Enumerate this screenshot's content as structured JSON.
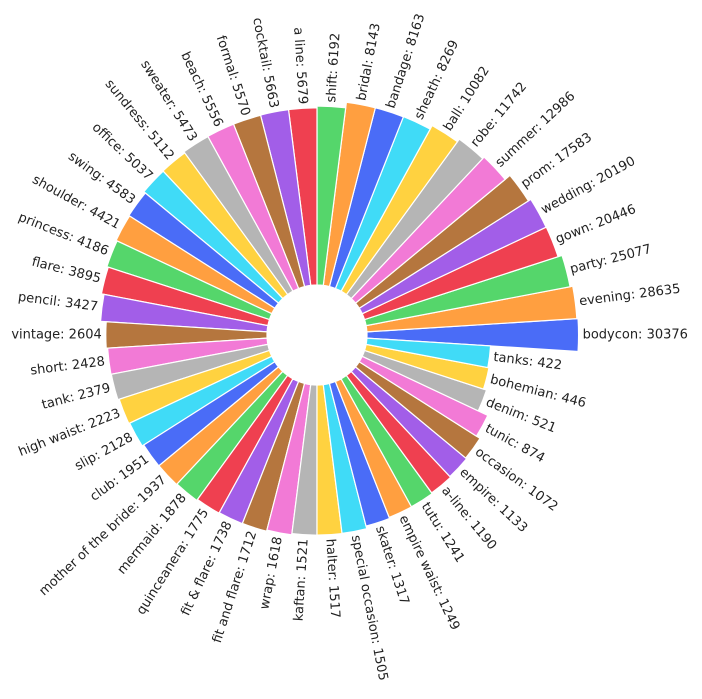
{
  "chart_data": {
    "type": "radial-bar",
    "log_scale": true,
    "ylim": [
      1,
      100000
    ],
    "colors": [
      "#4a6cf7",
      "#ff9f40",
      "#55d66b",
      "#ef4050",
      "#a25ee8",
      "#b5763e",
      "#f27ad6",
      "#b5b5b5",
      "#ffd240",
      "#40dbf7"
    ],
    "values": [
      30376,
      28635,
      25077,
      20446,
      20190,
      17583,
      12986,
      11742,
      10082,
      8269,
      8163,
      8143,
      6192,
      5679,
      5663,
      5570,
      5556,
      5473,
      5112,
      5037,
      4583,
      4421,
      4186,
      3895,
      3427,
      2604,
      2428,
      2379,
      2223,
      2128,
      1951,
      1937,
      1878,
      1775,
      1738,
      1712,
      1618,
      1521,
      1517,
      1505,
      1317,
      1249,
      1241,
      1190,
      1133,
      1072,
      874,
      521,
      446,
      422
    ],
    "value_labels": [
      "bodycon: 30376",
      "evening: 28635",
      "party: 25077",
      "gown: 20446",
      "wedding: 20190",
      "prom: 17583",
      "summer: 12986",
      "robe: 11742",
      "ball: 10082",
      "sheath: 8269",
      "bandage: 8163",
      "bridal: 8143",
      "shift: 6192",
      "a line: 5679",
      "cocktail: 5663",
      "formal: 5570",
      "beach: 5556",
      "sweater: 5473",
      "sundress: 5112",
      "office: 5037",
      "swing: 4583",
      "shoulder: 4421",
      "princess: 4186",
      "flare: 3895",
      "pencil: 3427",
      "vintage: 2604",
      "short: 2428",
      "tank: 2379",
      "high waist: 2223",
      "slip: 2128",
      "club: 1951",
      "mother of the bride: 1937",
      "mermaid: 1878",
      "quinceanera: 1775",
      "fit & flare: 1738",
      "fit and flare: 1712",
      "wrap: 1618",
      "kaftan: 1521",
      "halter: 1517",
      "special occasion: 1505",
      "skater: 1317",
      "empire waist: 1249",
      "tutu: 1241",
      "a-line: 1190",
      "empire: 1133",
      "occasion: 1072",
      "tunic: 874",
      "denim: 521",
      "bohemian: 446",
      "tanks: 422"
    ]
  }
}
